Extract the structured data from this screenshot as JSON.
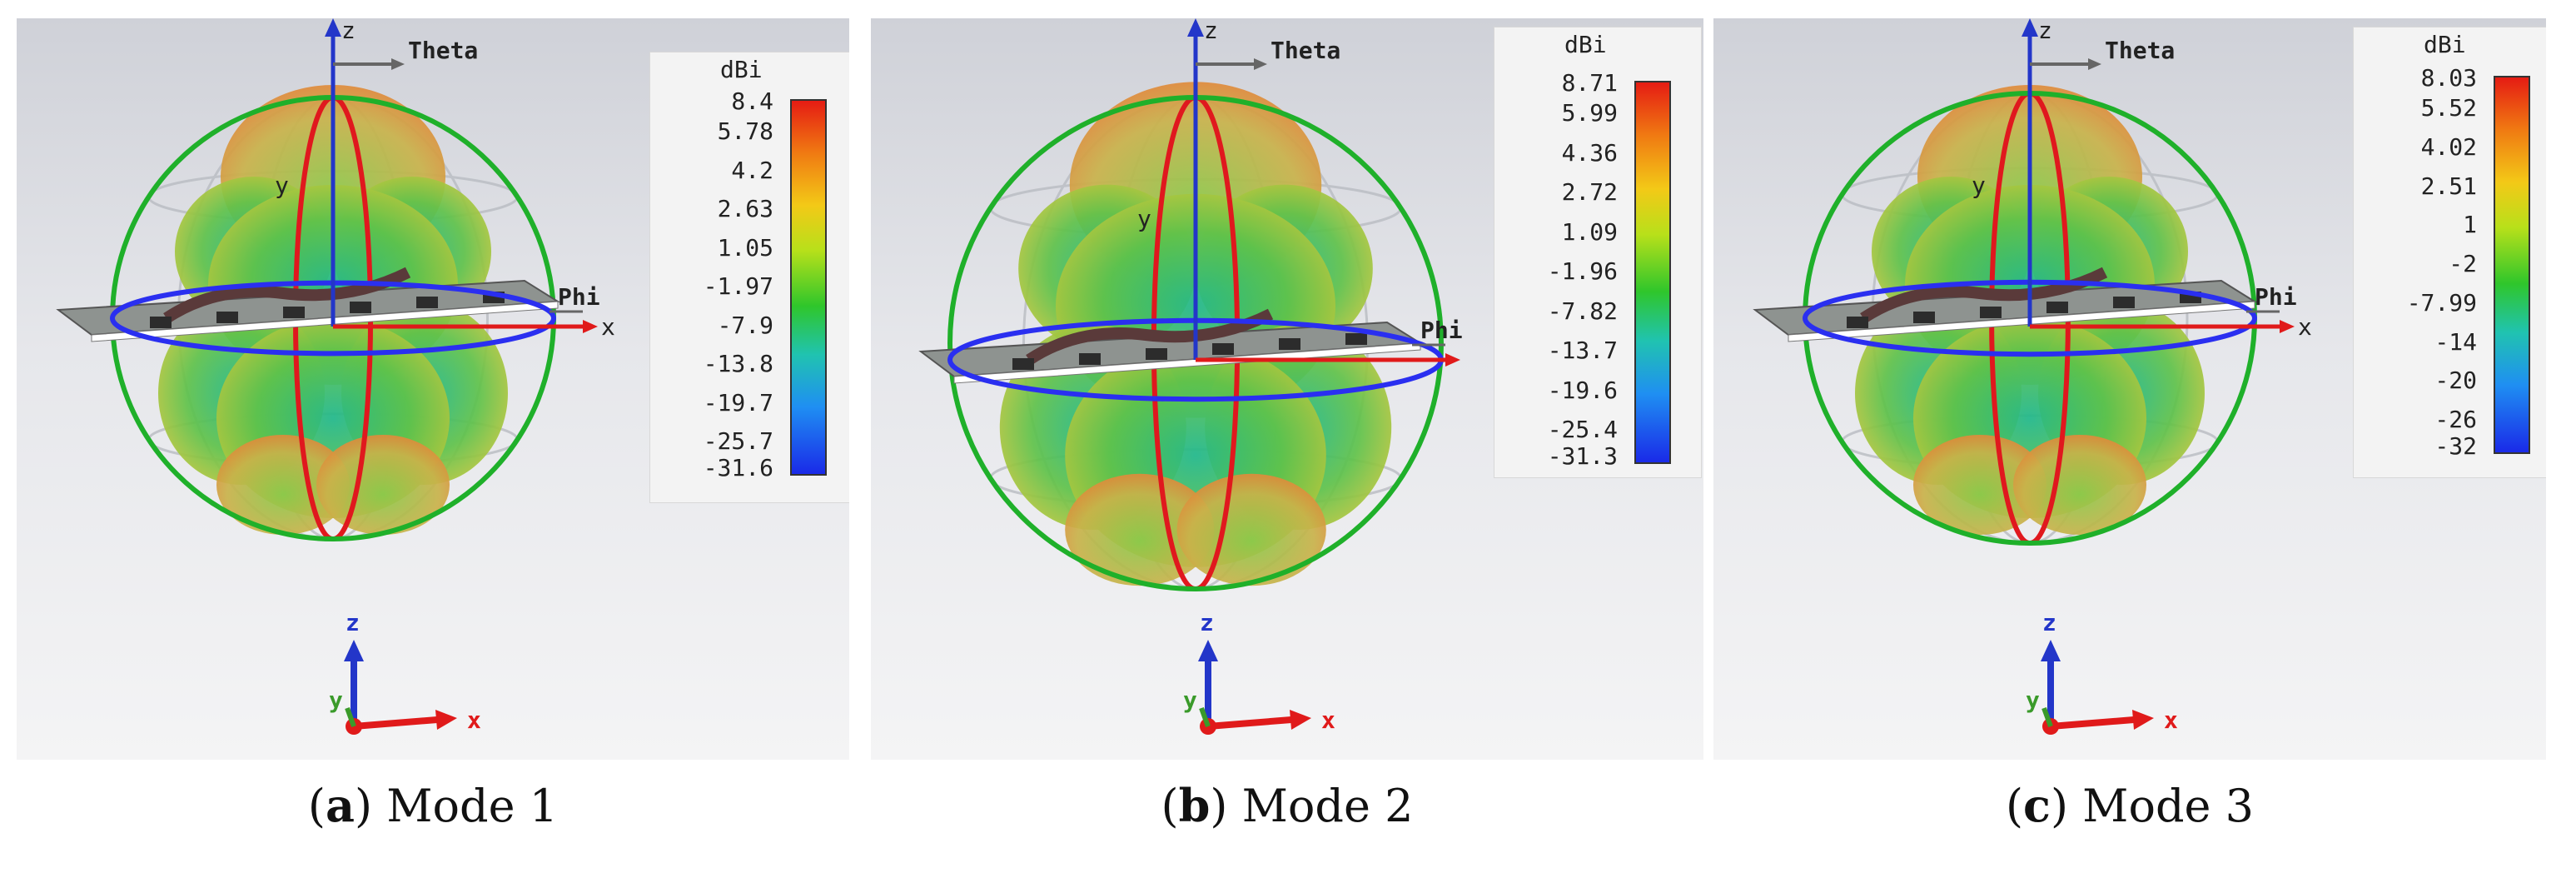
{
  "panels": [
    {
      "letter": "a",
      "caption_label": "Mode 1",
      "unit": "dBi",
      "ticks": [
        "8.4",
        "5.78",
        "4.2",
        "2.63",
        "1.05",
        "-1.97",
        "-7.9",
        "-13.8",
        "-19.7",
        "-25.7",
        "-31.6"
      ],
      "axes": {
        "z": "z",
        "theta": "Theta",
        "phi": "Phi",
        "x": "x",
        "y": "y"
      },
      "triad": {
        "z": "z",
        "x": "x",
        "y": "y"
      }
    },
    {
      "letter": "b",
      "caption_label": "Mode 2",
      "unit": "dBi",
      "ticks": [
        "8.71",
        "5.99",
        "4.36",
        "2.72",
        "1.09",
        "-1.96",
        "-7.82",
        "-13.7",
        "-19.6",
        "-25.4",
        "-31.3"
      ],
      "axes": {
        "z": "z",
        "theta": "Theta",
        "phi": "Phi",
        "x": "",
        "y": "y"
      },
      "triad": {
        "z": "z",
        "x": "x",
        "y": "y"
      }
    },
    {
      "letter": "c",
      "caption_label": "Mode 3",
      "unit": "dBi",
      "ticks": [
        "8.03",
        "5.52",
        "4.02",
        "2.51",
        "1",
        "-2",
        "-7.99",
        "-14",
        "-20",
        "-26",
        "-32"
      ],
      "axes": {
        "z": "z",
        "theta": "Theta",
        "phi": "Phi",
        "x": "x",
        "y": "y"
      },
      "triad": {
        "z": "z",
        "x": "x",
        "y": "y"
      }
    }
  ],
  "colors": {
    "green_ring": "#1fb02a",
    "red_ring": "#e0181e",
    "blue_ring": "#2a2ff0",
    "axis_blue": "#2336c9",
    "axis_red": "#e01a1a",
    "board": "#8e9390"
  }
}
